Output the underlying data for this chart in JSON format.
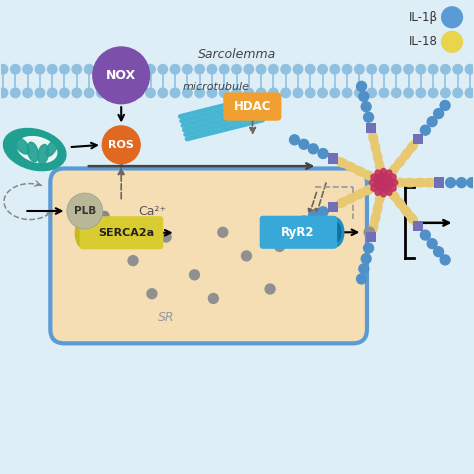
{
  "bg_color": "#deeef7",
  "sarcolemma_label": "Sarcolemma",
  "microtubule_label": "microtubule",
  "ca_label": "Ca²⁺",
  "sr_label": "SR",
  "legend_items": [
    {
      "label": "IL-1β",
      "color": "#5b9bd5"
    },
    {
      "label": "IL-18",
      "color": "#e8d44d"
    }
  ],
  "nox_color": "#7b4faa",
  "nox_label": "NOX",
  "ros_color": "#e06820",
  "ros_label": "ROS",
  "hdac_color": "#f0a030",
  "hdac_label": "HDAC",
  "plb_color": "#b8b898",
  "plb_label": "PLB",
  "serca_color": "#d8cc30",
  "serca_label": "SERCA2a",
  "ryr2_color": "#38a8d8",
  "ryr2_label": "RyR2",
  "mito_color": "#20a090",
  "sr_fill": "#f5deb3",
  "sr_border": "#5b9bd5",
  "membrane_head_color": "#90c0e0",
  "microtubule_color": "#35b0d0",
  "nlrp3_center_color": "#c03060",
  "nlrp3_spoke_color": "#e8c870",
  "nlrp3_dot_color": "#5090c8",
  "nlrp3_square_color": "#7070b8"
}
